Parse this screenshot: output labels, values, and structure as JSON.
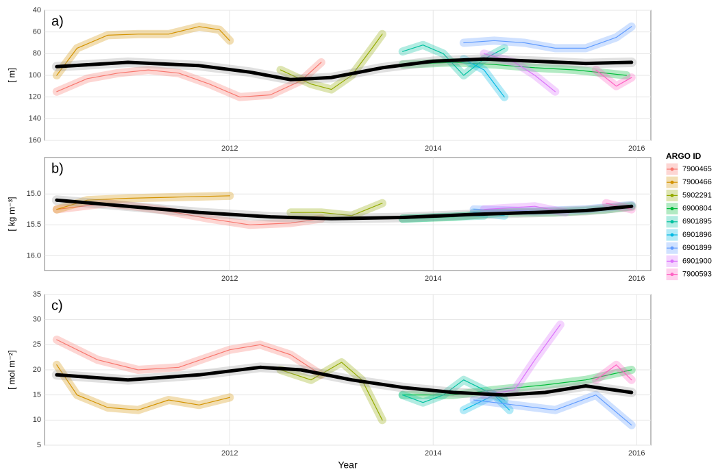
{
  "chart_data": [
    {
      "type": "line",
      "title": "a)",
      "ylabel": "[ m]",
      "xlim": [
        2010.18,
        2016.14
      ],
      "xticks": [
        2012,
        2014,
        2016
      ],
      "ylim": [
        160,
        40
      ],
      "yticks": [
        40,
        60,
        80,
        100,
        120,
        140,
        160
      ],
      "grid": true,
      "legend": "right",
      "legend_title": "ARGO ID",
      "series": [
        {
          "name": "7900465",
          "color": "#F8766D",
          "x": [
            2010.3,
            2010.6,
            2010.9,
            2011.2,
            2011.5,
            2011.8,
            2012.1,
            2012.4,
            2012.7,
            2012.9
          ],
          "values": [
            115,
            103,
            98,
            95,
            98,
            108,
            120,
            118,
            105,
            88
          ]
        },
        {
          "name": "7900466",
          "color": "#D39200",
          "x": [
            2010.3,
            2010.5,
            2010.8,
            2011.1,
            2011.4,
            2011.7,
            2011.9,
            2012.0
          ],
          "values": [
            100,
            75,
            63,
            62,
            62,
            55,
            58,
            68
          ]
        },
        {
          "name": "5902291",
          "color": "#93AA00",
          "x": [
            2012.5,
            2012.8,
            2013.0,
            2013.2,
            2013.4,
            2013.5
          ],
          "values": [
            95,
            108,
            113,
            100,
            75,
            62
          ]
        },
        {
          "name": "6900804",
          "color": "#00BA38",
          "x": [
            2013.7,
            2014.2,
            2014.6,
            2015.0,
            2015.4,
            2015.9
          ],
          "values": [
            90,
            88,
            90,
            93,
            95,
            100
          ]
        },
        {
          "name": "6901895",
          "color": "#00C19F",
          "x": [
            2013.7,
            2013.9,
            2014.1,
            2014.3,
            2014.5,
            2014.7
          ],
          "values": [
            78,
            72,
            80,
            100,
            85,
            75
          ]
        },
        {
          "name": "6901896",
          "color": "#00B9E3",
          "x": [
            2014.3,
            2014.5,
            2014.7
          ],
          "values": [
            85,
            95,
            120
          ]
        },
        {
          "name": "6901899",
          "color": "#619CFF",
          "x": [
            2014.3,
            2014.6,
            2014.9,
            2015.2,
            2015.5,
            2015.8,
            2015.95
          ],
          "values": [
            70,
            68,
            70,
            75,
            75,
            65,
            55
          ]
        },
        {
          "name": "6901900",
          "color": "#DB72FB",
          "x": [
            2014.5,
            2014.8,
            2015.0,
            2015.2
          ],
          "values": [
            80,
            88,
            100,
            115
          ]
        },
        {
          "name": "7900593",
          "color": "#FF61C3",
          "x": [
            2015.6,
            2015.8,
            2015.95
          ],
          "values": [
            95,
            110,
            102
          ]
        },
        {
          "color": "#000000",
          "x": [
            2010.3,
            2011.0,
            2011.7,
            2012.2,
            2012.6,
            2013.0,
            2013.5,
            2014.0,
            2014.5,
            2015.0,
            2015.5,
            2015.95
          ],
          "values": [
            92,
            88,
            91,
            97,
            104,
            102,
            93,
            87,
            85,
            87,
            89,
            88
          ]
        }
      ]
    },
    {
      "type": "line",
      "title": "b)",
      "ylabel": "[ kg m⁻³]",
      "xlim": [
        2010.18,
        2016.14
      ],
      "xticks": [
        2012,
        2014,
        2016
      ],
      "ylim": [
        16.24,
        14.41
      ],
      "yticks": [
        {
          "value": 15,
          "label": "15.0"
        },
        15.5,
        {
          "value": 16,
          "label": "16.0"
        }
      ],
      "grid": true,
      "series": [
        {
          "name": "7900465",
          "color": "#F8766D",
          "x": [
            2010.3,
            2010.8,
            2011.3,
            2011.8,
            2012.2,
            2012.6,
            2012.9
          ],
          "values": [
            15.25,
            15.15,
            15.25,
            15.4,
            15.5,
            15.47,
            15.4
          ]
        },
        {
          "name": "7900466",
          "color": "#D39200",
          "x": [
            2010.3,
            2010.6,
            2011.0,
            2011.5,
            2012.0
          ],
          "values": [
            15.25,
            15.1,
            15.07,
            15.05,
            15.03
          ]
        },
        {
          "name": "5902291",
          "color": "#93AA00",
          "x": [
            2012.6,
            2012.9,
            2013.2,
            2013.5
          ],
          "values": [
            15.3,
            15.3,
            15.35,
            15.15
          ]
        },
        {
          "name": "6900804",
          "color": "#00BA38",
          "x": [
            2013.7,
            2014.2,
            2014.7,
            2015.2,
            2015.7,
            2015.95
          ],
          "values": [
            15.4,
            15.37,
            15.3,
            15.3,
            15.25,
            15.2
          ]
        },
        {
          "name": "6901895",
          "color": "#00C19F",
          "x": [
            2013.7,
            2014.1,
            2014.5
          ],
          "values": [
            15.4,
            15.37,
            15.35
          ]
        },
        {
          "name": "6901896",
          "color": "#00B9E3",
          "x": [
            2014.4,
            2014.7
          ],
          "values": [
            15.3,
            15.35
          ]
        },
        {
          "name": "6901899",
          "color": "#619CFF",
          "x": [
            2014.4,
            2015.0,
            2015.5,
            2015.95
          ],
          "values": [
            15.25,
            15.28,
            15.25,
            15.18
          ]
        },
        {
          "name": "6901900",
          "color": "#DB72FB",
          "x": [
            2014.5,
            2015.0,
            2015.3
          ],
          "values": [
            15.25,
            15.2,
            15.3
          ]
        },
        {
          "name": "7900593",
          "color": "#FF61C3",
          "x": [
            2015.7,
            2015.95
          ],
          "values": [
            15.15,
            15.25
          ]
        },
        {
          "color": "#000000",
          "x": [
            2010.3,
            2011.0,
            2011.7,
            2012.4,
            2013.0,
            2013.7,
            2014.4,
            2015.0,
            2015.5,
            2015.95
          ],
          "values": [
            15.1,
            15.2,
            15.3,
            15.37,
            15.4,
            15.38,
            15.33,
            15.3,
            15.27,
            15.2
          ]
        }
      ]
    },
    {
      "type": "line",
      "title": "c)",
      "ylabel": "[ mol m⁻²]",
      "xlabel": "Year",
      "xlim": [
        2010.18,
        2016.14
      ],
      "xticks": [
        2012,
        2014,
        2016
      ],
      "ylim": [
        5,
        35
      ],
      "yticks": [
        5,
        10,
        15,
        20,
        25,
        30,
        35
      ],
      "grid": true,
      "series": [
        {
          "name": "7900465",
          "color": "#F8766D",
          "x": [
            2010.3,
            2010.7,
            2011.1,
            2011.5,
            2012.0,
            2012.3,
            2012.6,
            2012.9
          ],
          "values": [
            26,
            22,
            20,
            20.5,
            24,
            25,
            23,
            19
          ]
        },
        {
          "name": "7900466",
          "color": "#D39200",
          "x": [
            2010.3,
            2010.5,
            2010.8,
            2011.1,
            2011.4,
            2011.7,
            2012.0
          ],
          "values": [
            21,
            15,
            12.5,
            12,
            14,
            13,
            14.5
          ]
        },
        {
          "name": "5902291",
          "color": "#93AA00",
          "x": [
            2012.5,
            2012.8,
            2013.1,
            2013.3,
            2013.5
          ],
          "values": [
            20,
            18,
            21.5,
            18,
            10
          ]
        },
        {
          "name": "6900804",
          "color": "#00BA38",
          "x": [
            2013.7,
            2014.2,
            2014.6,
            2015.1,
            2015.5,
            2015.95
          ],
          "values": [
            15,
            15,
            16,
            17,
            18,
            20
          ]
        },
        {
          "name": "6901895",
          "color": "#00C19F",
          "x": [
            2013.7,
            2013.9,
            2014.1,
            2014.3,
            2014.5,
            2014.7
          ],
          "values": [
            15,
            13.5,
            15,
            18,
            16,
            14
          ]
        },
        {
          "name": "6901896",
          "color": "#00B9E3",
          "x": [
            2014.3,
            2014.6,
            2014.75
          ],
          "values": [
            12,
            15,
            12
          ]
        },
        {
          "name": "6901899",
          "color": "#619CFF",
          "x": [
            2014.4,
            2014.8,
            2015.2,
            2015.6,
            2015.95
          ],
          "values": [
            14,
            13,
            12,
            15,
            9
          ]
        },
        {
          "name": "6901900",
          "color": "#DB72FB",
          "x": [
            2014.5,
            2014.8,
            2015.0,
            2015.25
          ],
          "values": [
            15,
            16,
            22,
            29
          ]
        },
        {
          "name": "7900593",
          "color": "#FF61C3",
          "x": [
            2015.6,
            2015.8,
            2015.95
          ],
          "values": [
            18,
            21,
            18
          ]
        },
        {
          "color": "#000000",
          "x": [
            2010.3,
            2011.0,
            2011.7,
            2012.3,
            2012.7,
            2013.2,
            2013.7,
            2014.2,
            2014.7,
            2015.1,
            2015.5,
            2015.95
          ],
          "values": [
            19,
            18,
            19,
            20.5,
            20,
            18,
            16.5,
            15.5,
            15,
            15.5,
            16.8,
            15.5
          ]
        }
      ]
    }
  ]
}
